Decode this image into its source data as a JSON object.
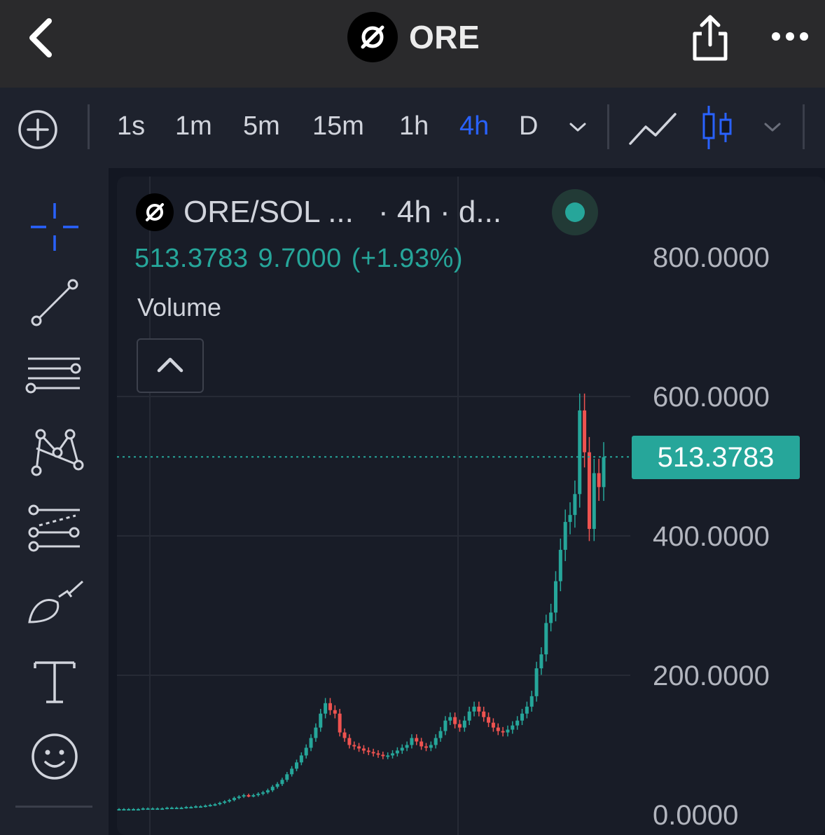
{
  "header": {
    "title": "ORE",
    "back_icon": "chevron-left-icon",
    "share_icon": "share-icon",
    "more_icon": "more-horizontal-icon"
  },
  "toolbar": {
    "timeframes": [
      "1s",
      "1m",
      "5m",
      "15m",
      "1h",
      "4h",
      "D"
    ],
    "active_timeframe": "4h"
  },
  "legend": {
    "symbol": "ORE/SOL ...",
    "interval": "· 4h · d...",
    "price": "513.3783",
    "change": "9.7000",
    "change_pct": "(+1.93%)",
    "volume_label": "Volume"
  },
  "colors": {
    "up": "#26a69a",
    "down": "#ef5350",
    "active": "#2962ff"
  },
  "chart_data": {
    "type": "candlestick",
    "price_axis": [
      "800.0000",
      "600.0000",
      "400.0000",
      "200.0000",
      "0.0000"
    ],
    "ylim": [
      0,
      800
    ],
    "last_price": "513.3783",
    "close_values": [
      8,
      8,
      8,
      8,
      8,
      9,
      9,
      9,
      9,
      9,
      10,
      10,
      10,
      10,
      11,
      11,
      12,
      12,
      13,
      14,
      15,
      17,
      19,
      21,
      24,
      26,
      28,
      27,
      28,
      30,
      32,
      35,
      40,
      44,
      50,
      58,
      66,
      75,
      85,
      96,
      110,
      125,
      145,
      160,
      150,
      145,
      118,
      110,
      100,
      98,
      95,
      92,
      90,
      88,
      86,
      84,
      85,
      88,
      92,
      96,
      100,
      110,
      105,
      98,
      96,
      100,
      110,
      120,
      135,
      140,
      130,
      125,
      135,
      148,
      155,
      148,
      140,
      132,
      125,
      120,
      118,
      122,
      128,
      135,
      145,
      155,
      170,
      210,
      230,
      275,
      290,
      335,
      380,
      420,
      430,
      460,
      580,
      520,
      410,
      490,
      470,
      513
    ]
  }
}
